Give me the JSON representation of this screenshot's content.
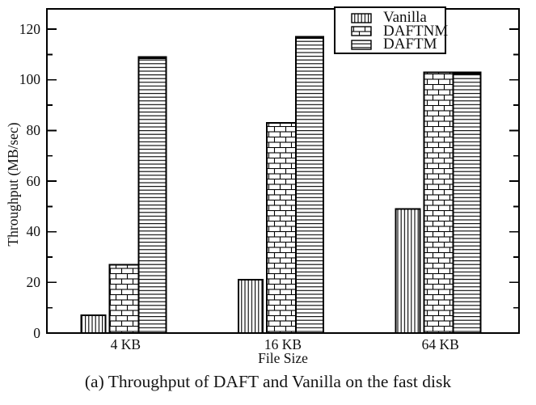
{
  "caption": "(a) Throughput of DAFT and Vanilla on the fast disk",
  "chart_data": {
    "type": "bar",
    "title": "",
    "xlabel": "File Size",
    "ylabel": "Throughput (MB/sec)",
    "categories": [
      "4 KB",
      "16 KB",
      "64 KB"
    ],
    "series": [
      {
        "name": "Vanilla",
        "pattern": "vertical-lines",
        "values": [
          7,
          21,
          49
        ]
      },
      {
        "name": "DAFTNM",
        "pattern": "bricks",
        "values": [
          27,
          83,
          103
        ]
      },
      {
        "name": "DAFTM",
        "pattern": "horizontal-lines",
        "values": [
          109,
          117,
          103
        ]
      }
    ],
    "ylim": [
      0,
      128
    ],
    "yticks_major": [
      0,
      20,
      40,
      60,
      80,
      100,
      120
    ],
    "yticks_minor": [
      10,
      30,
      50,
      70,
      90,
      110
    ],
    "legend_position": "top-right-inside",
    "grid": false,
    "bar_fill_color": "#ffffff",
    "line_color": "#000000"
  }
}
